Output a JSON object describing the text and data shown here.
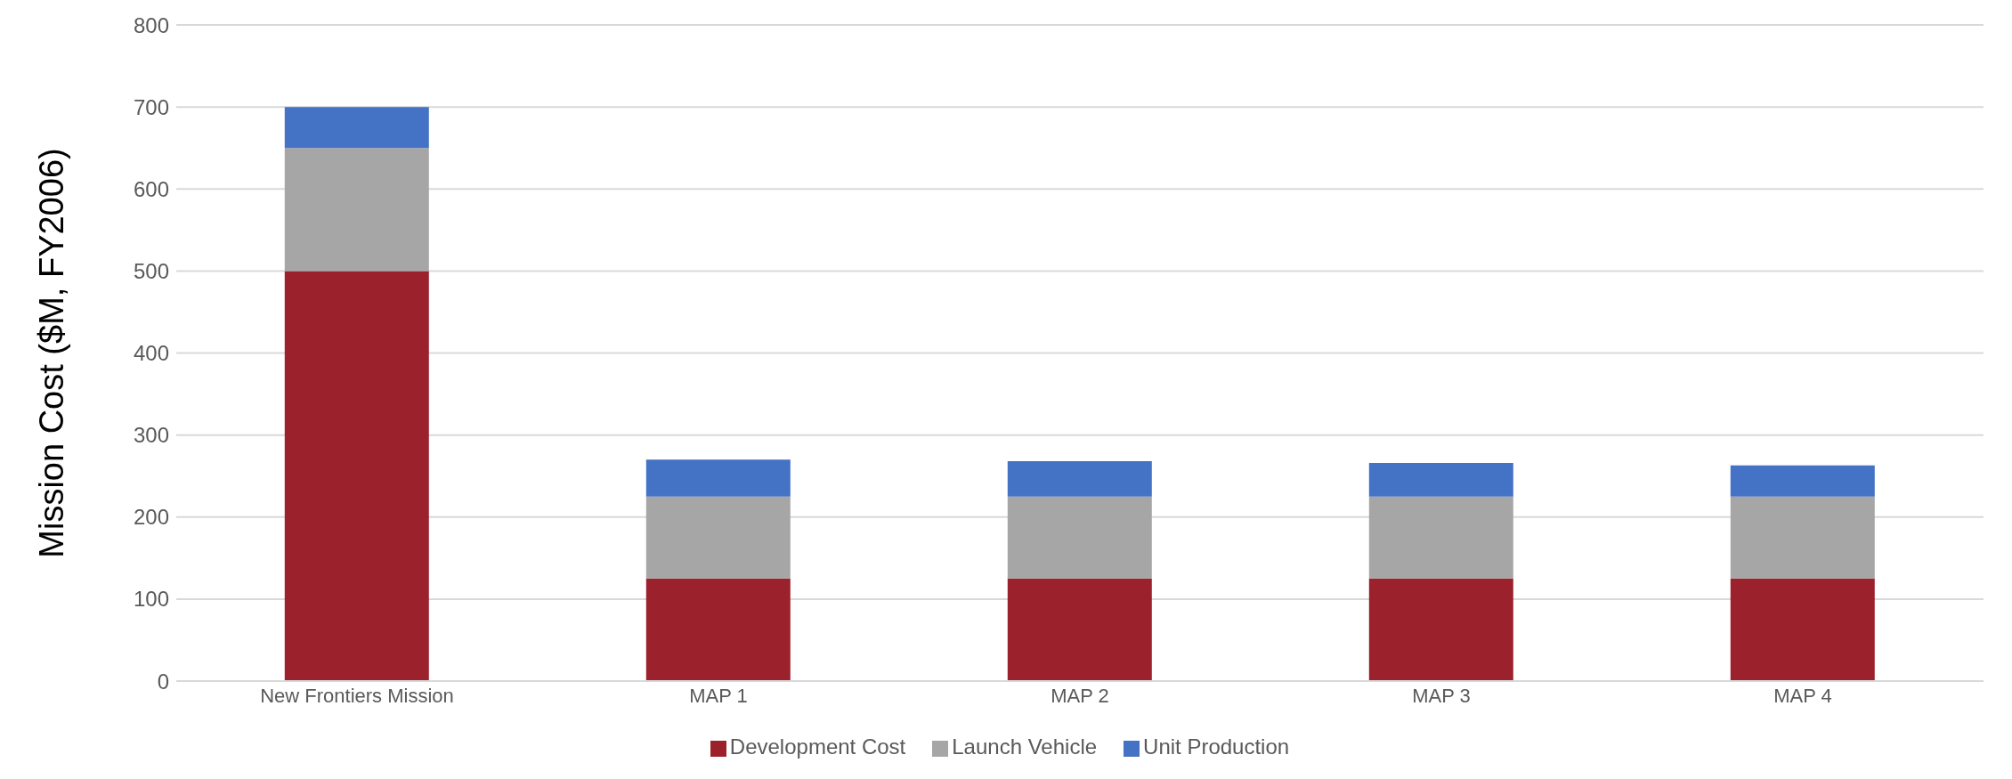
{
  "chart_data": {
    "type": "bar",
    "stacked": true,
    "ylabel": "Mission Cost ($M, FY2006)",
    "categories": [
      "New Frontiers Mission",
      "MAP 1",
      "MAP 2",
      "MAP 3",
      "MAP 4"
    ],
    "series": [
      {
        "name": "Development Cost",
        "color": "#9b222d",
        "values": [
          500,
          125,
          125,
          125,
          125
        ]
      },
      {
        "name": "Launch Vehicle",
        "color": "#a6a6a6",
        "values": [
          150,
          100,
          100,
          100,
          100
        ]
      },
      {
        "name": "Unit Production",
        "color": "#4472c4",
        "values": [
          50,
          45,
          43,
          41,
          38
        ]
      }
    ],
    "ylim": [
      0,
      800
    ],
    "yticks": [
      0,
      100,
      200,
      300,
      400,
      500,
      600,
      700,
      800
    ],
    "grid": "y",
    "legend": "bottom"
  }
}
